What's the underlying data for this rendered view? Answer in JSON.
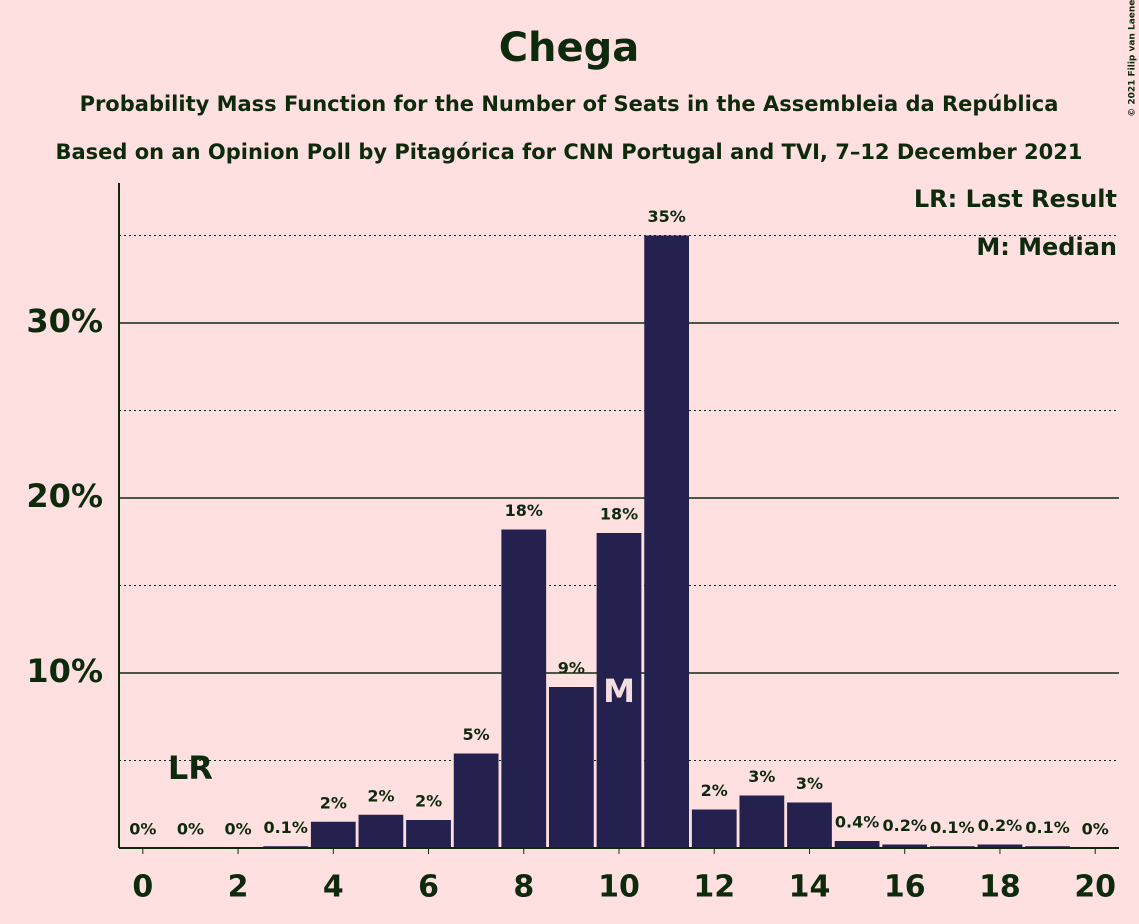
{
  "chart_data": {
    "type": "bar",
    "title": "Chega",
    "subtitles": [
      "Probability Mass Function for the Number of Seats in the Assembleia da República",
      "Based on an Opinion Poll by Pitagórica for CNN Portugal and TVI, 7–12 December 2021"
    ],
    "credit": "© 2021 Filip van Laenen",
    "x": [
      0,
      1,
      2,
      3,
      4,
      5,
      6,
      7,
      8,
      9,
      10,
      11,
      12,
      13,
      14,
      15,
      16,
      17,
      18,
      19,
      20
    ],
    "values": [
      0,
      0,
      0,
      0.1,
      1.5,
      1.9,
      1.6,
      5.4,
      18.2,
      9.2,
      18.0,
      35.0,
      2.2,
      3.0,
      2.6,
      0.4,
      0.2,
      0.1,
      0.2,
      0.1,
      0
    ],
    "value_labels": [
      "0%",
      "0%",
      "0%",
      "0.1%",
      "2%",
      "2%",
      "2%",
      "5%",
      "18%",
      "9%",
      "18%",
      "35%",
      "2%",
      "3%",
      "3%",
      "0.4%",
      "0.2%",
      "0.1%",
      "0.2%",
      "0.1%",
      "0%"
    ],
    "color": "#24214f",
    "xlim": [
      -0.5,
      20.5
    ],
    "xticks": [
      0,
      2,
      4,
      6,
      8,
      10,
      12,
      14,
      16,
      18,
      20
    ],
    "ylim": [
      0,
      38
    ],
    "yticks": [
      {
        "value": 10,
        "label": "10%"
      },
      {
        "value": 20,
        "label": "20%"
      },
      {
        "value": 30,
        "label": "30%"
      }
    ],
    "minor_yticks": [
      5,
      15,
      25,
      35
    ],
    "grid": true,
    "last_result": {
      "x": 1,
      "label": "LR"
    },
    "median": {
      "x": 10,
      "label": "M"
    },
    "legend": [
      "LR: Last Result",
      "M: Median"
    ],
    "legend_position": "top-right"
  }
}
